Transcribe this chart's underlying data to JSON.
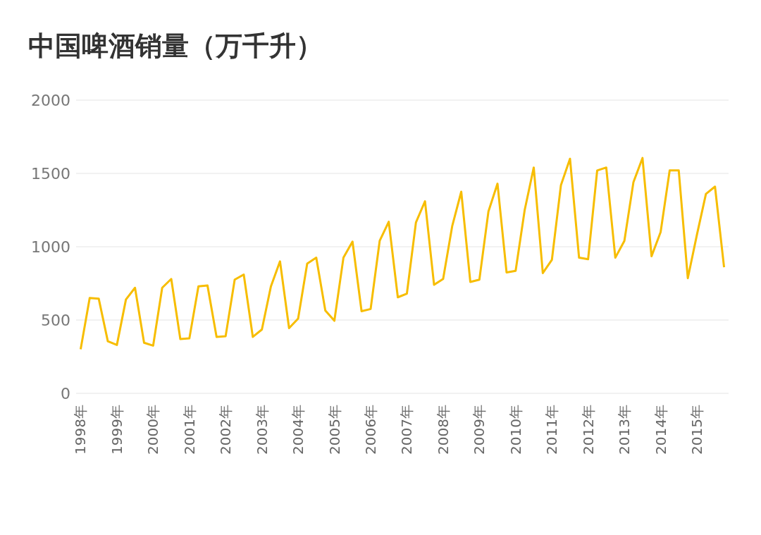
{
  "chart_data": {
    "type": "line",
    "title": "中国啤酒销量（万千升）",
    "categories": [
      "1998年",
      null,
      null,
      null,
      "1999年",
      null,
      null,
      null,
      "2000年",
      null,
      null,
      null,
      "2001年",
      null,
      null,
      null,
      "2002年",
      null,
      null,
      null,
      "2003年",
      null,
      null,
      null,
      "2004年",
      null,
      null,
      null,
      "2005年",
      null,
      null,
      null,
      "2006年",
      null,
      null,
      null,
      "2007年",
      null,
      null,
      null,
      "2008年",
      null,
      null,
      null,
      "2009年",
      null,
      null,
      null,
      "2010年",
      null,
      null,
      null,
      "2011年",
      null,
      null,
      null,
      "2012年",
      null,
      null,
      null,
      "2013年",
      null,
      null,
      null,
      "2014年",
      null,
      null,
      null,
      "2015年",
      null,
      null,
      null
    ],
    "series": [
      {
        "color": "#f7bd00",
        "values": [
          300,
          650,
          645,
          355,
          330,
          640,
          720,
          345,
          325,
          720,
          780,
          370,
          375,
          730,
          735,
          385,
          390,
          775,
          810,
          385,
          435,
          730,
          900,
          445,
          510,
          885,
          925,
          565,
          495,
          925,
          1035,
          560,
          575,
          1040,
          1170,
          655,
          680,
          1165,
          1310,
          740,
          780,
          1140,
          1375,
          760,
          775,
          1240,
          1430,
          825,
          835,
          1250,
          1540,
          820,
          910,
          1420,
          1600,
          925,
          915,
          1520,
          1540,
          925,
          1040,
          1440,
          1605,
          935,
          1100,
          1520,
          1520,
          785,
          1080,
          1360,
          1410,
          860
        ]
      }
    ],
    "ylim": [
      0,
      2000
    ],
    "yticks": [
      0,
      500,
      1000,
      1500,
      2000
    ],
    "grid": "y",
    "legend": false,
    "marker": "none",
    "line_style": "solid"
  }
}
